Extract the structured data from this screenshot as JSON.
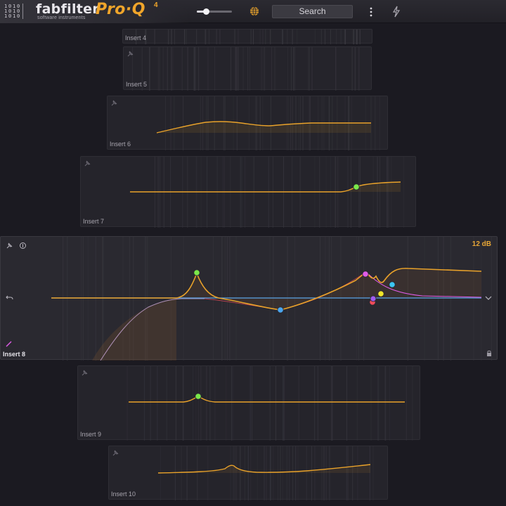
{
  "header": {
    "brand": "fabfilter",
    "brand_sub": "software instruments",
    "product": "Pro·Q",
    "product_version": "4",
    "output_level": 0.25,
    "search_label": "Search",
    "icons": [
      "fabfilter-logo-icon",
      "globe-icon",
      "more-menu-icon",
      "lightning-icon"
    ]
  },
  "colors": {
    "accent": "#f0a52a",
    "background": "#1b1a21",
    "band_green": "#7be84a",
    "band_blue": "#4aa6f0",
    "band_magenta": "#e05ce8",
    "band_red": "#f04c5a",
    "band_purple": "#a05cf0",
    "band_yellow": "#f0e62a",
    "band_cyan": "#3cc6f0"
  },
  "inserts": [
    {
      "id": "insert4",
      "label": "Insert 4"
    },
    {
      "id": "insert5",
      "label": "Insert 5"
    },
    {
      "id": "insert6",
      "label": "Insert 6"
    },
    {
      "id": "insert7",
      "label": "Insert 7"
    },
    {
      "id": "insert8",
      "label": "Insert 8",
      "active": true,
      "range_label": "12 dB"
    },
    {
      "id": "insert9",
      "label": "Insert 9"
    },
    {
      "id": "insert10",
      "label": "Insert 10"
    }
  ]
}
